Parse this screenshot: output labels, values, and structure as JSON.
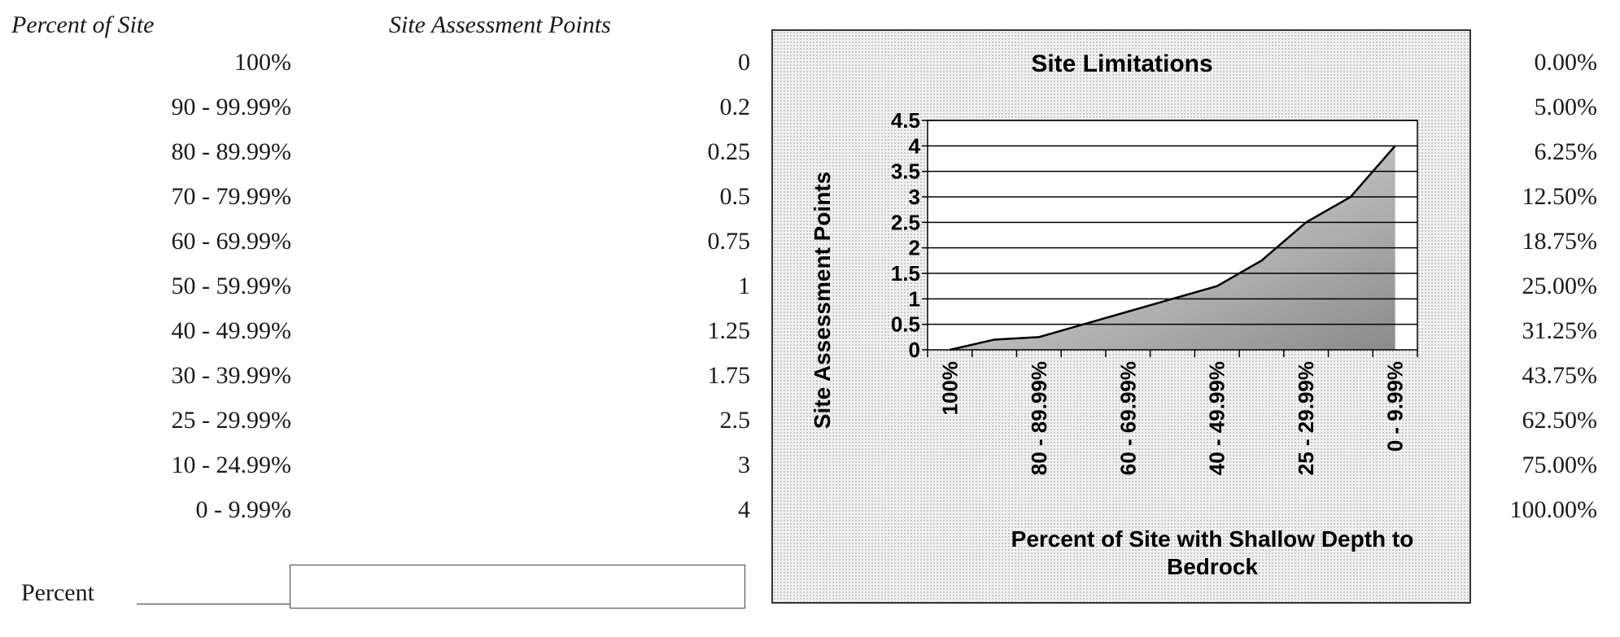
{
  "table": {
    "header_percent": "Percent of Site",
    "header_points": "Site Assessment Points",
    "rows": [
      {
        "percent": "100%",
        "points": "0"
      },
      {
        "percent": "90 - 99.99%",
        "points": "0.2"
      },
      {
        "percent": "80 - 89.99%",
        "points": "0.25"
      },
      {
        "percent": "70 - 79.99%",
        "points": "0.5"
      },
      {
        "percent": "60 - 69.99%",
        "points": "0.75"
      },
      {
        "percent": "50 - 59.99%",
        "points": "1"
      },
      {
        "percent": "40 - 49.99%",
        "points": "1.25"
      },
      {
        "percent": "30 - 39.99%",
        "points": "1.75"
      },
      {
        "percent": "25 - 29.99%",
        "points": "2.5"
      },
      {
        "percent": "10 - 24.99%",
        "points": "3"
      },
      {
        "percent": "0 - 9.99%",
        "points": "4"
      }
    ]
  },
  "percent_input": {
    "label": "Percent",
    "value": ""
  },
  "right_column": [
    "0.00%",
    "5.00%",
    "6.25%",
    "12.50%",
    "18.75%",
    "25.00%",
    "31.25%",
    "43.75%",
    "62.50%",
    "75.00%",
    "100.00%"
  ],
  "chart_data": {
    "type": "area",
    "title": "Site Limitations",
    "xlabel": "Percent of Site with Shallow Depth to Bedrock",
    "ylabel": "Site Assessment Points",
    "categories": [
      "100%",
      "90 - 99.99%",
      "80 - 89.99%",
      "70 - 79.99%",
      "60 - 69.99%",
      "50 - 59.99%",
      "40 - 49.99%",
      "30 - 39.99%",
      "25 - 29.99%",
      "10 - 24.99%",
      "0 - 9.99%"
    ],
    "x_tick_labels_shown": [
      "100%",
      "80 - 89.99%",
      "60 - 69.99%",
      "40 - 49.99%",
      "25 - 29.99%",
      "0 - 9.99%"
    ],
    "values": [
      0,
      0.2,
      0.25,
      0.5,
      0.75,
      1,
      1.25,
      1.75,
      2.5,
      3,
      4
    ],
    "ylim": [
      0,
      4.5
    ],
    "yticks": [
      "0",
      "0.5",
      "1",
      "1.5",
      "2",
      "2.5",
      "3",
      "3.5",
      "4",
      "4.5"
    ],
    "grid": "horizontal",
    "legend": "none",
    "colors": {
      "fill_light": "#f0f0f0",
      "fill_dark": "#8a8a8a",
      "line": "#000000",
      "plot_bg": "#ffffff"
    }
  }
}
